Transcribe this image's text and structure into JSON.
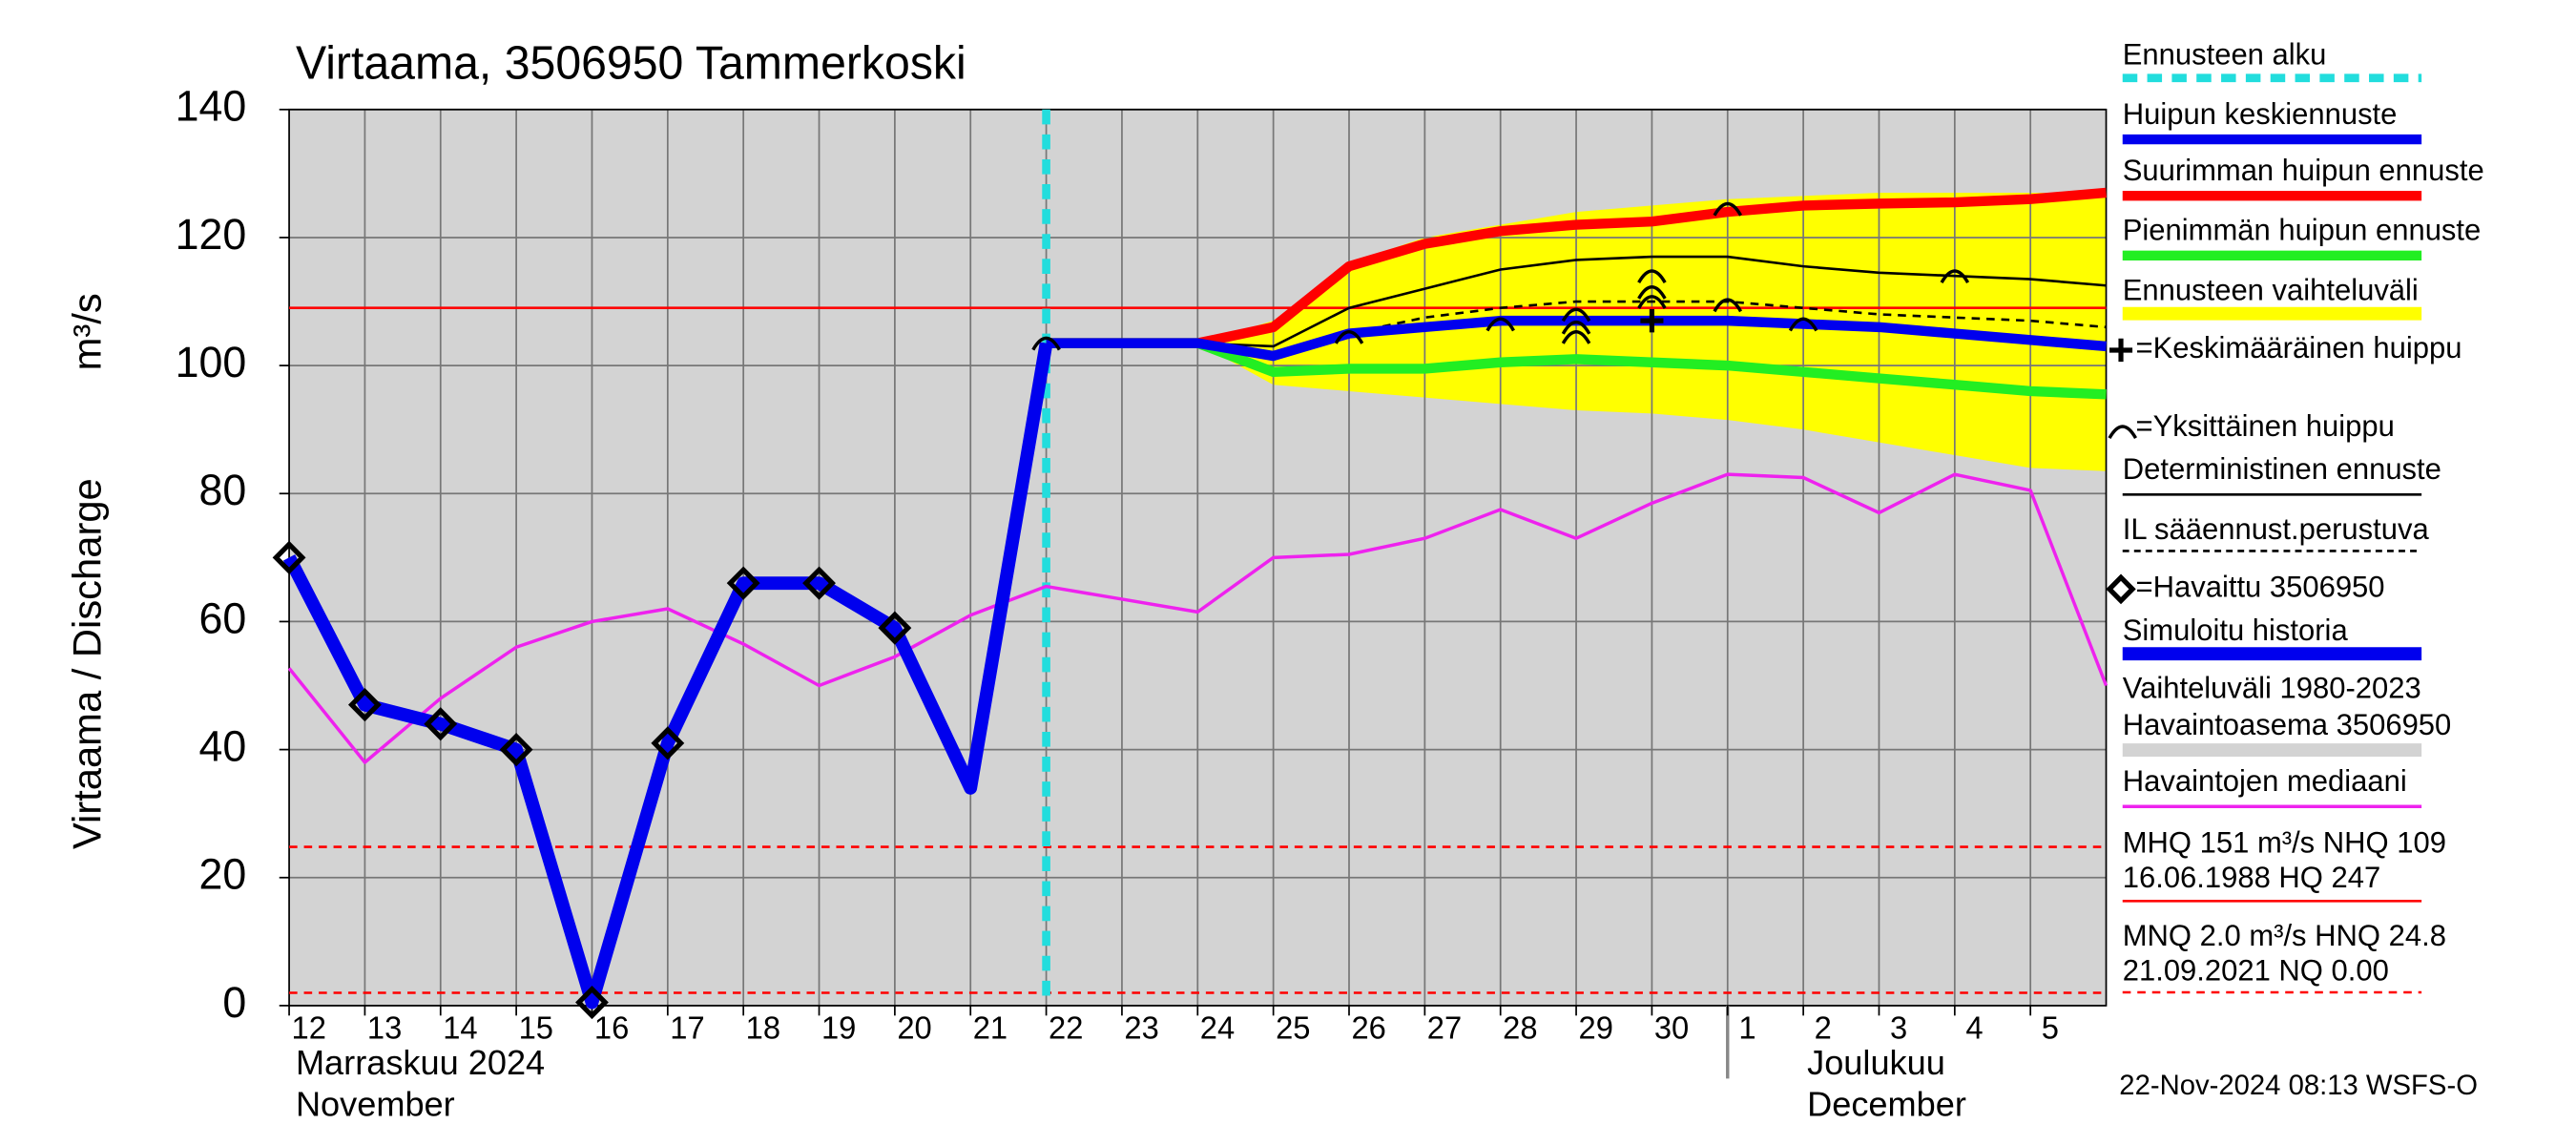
{
  "chart_data": {
    "type": "line",
    "title": "Virtaama, 3506950 Tammerkoski",
    "y_label": "Virtaama / Discharge",
    "y_unit": "m³/s",
    "categories": [
      "12",
      "13",
      "14",
      "15",
      "16",
      "17",
      "18",
      "19",
      "20",
      "21",
      "22",
      "23",
      "24",
      "25",
      "26",
      "27",
      "28",
      "29",
      "30",
      "1",
      "2",
      "3",
      "4",
      "5",
      null
    ],
    "month_labels": [
      "Marraskuu 2024",
      "November",
      "Joulukuu",
      "December"
    ],
    "timestamp": "22-Nov-2024 08:13 WSFS-O",
    "ylim": [
      0,
      140
    ],
    "yticks": [
      0,
      20,
      40,
      60,
      80,
      100,
      120,
      140
    ],
    "grid": true,
    "background_band": {
      "name": [
        "Vaihteluväli 1980-2023",
        " Havaintoasema 3506950"
      ],
      "color": "#d3d3d3"
    },
    "forecast_start": {
      "name": "Ennusteen alku",
      "category": "22",
      "color": "#22dddd"
    },
    "band": {
      "name": "Ennusteen vaihteluväli",
      "color": "#ffff00",
      "upper": [
        null,
        null,
        null,
        null,
        null,
        null,
        null,
        null,
        null,
        null,
        103.5,
        103.5,
        103.5,
        107,
        116,
        120,
        122,
        124,
        125,
        126,
        126.5,
        127,
        127,
        127,
        127
      ],
      "lower": [
        null,
        null,
        null,
        null,
        null,
        null,
        null,
        null,
        null,
        null,
        103.5,
        103.5,
        103.5,
        97,
        96,
        95,
        94,
        93,
        92.5,
        91.5,
        90,
        88,
        86,
        84,
        83.5
      ]
    },
    "series": [
      {
        "name": "Havaintojen mediaani",
        "color": "#ee22ee",
        "width": 2,
        "values": [
          52.7,
          38,
          48,
          56,
          60,
          62,
          56.5,
          50,
          54.5,
          61,
          65.5,
          63.5,
          61.5,
          70,
          70.5,
          73,
          77.5,
          73,
          78.5,
          83,
          82.5,
          77,
          83,
          80.5,
          50
        ]
      },
      {
        "name": "Deterministinen ennuste",
        "color": "#000000",
        "width": 1.5,
        "values": [
          null,
          null,
          null,
          null,
          null,
          null,
          null,
          null,
          null,
          null,
          103.5,
          103.5,
          103.5,
          103,
          109,
          112,
          115,
          116.5,
          117,
          117,
          115.5,
          114.5,
          114,
          113.5,
          112.5
        ]
      },
      {
        "name": "IL sääennust.perustuva",
        "color": "#000000",
        "width": 1.5,
        "dash": true,
        "values": [
          null,
          null,
          null,
          null,
          null,
          null,
          null,
          null,
          null,
          null,
          103.5,
          103.5,
          103.5,
          102,
          105,
          107.5,
          109,
          110,
          110,
          110,
          109,
          108,
          107.5,
          107,
          106
        ]
      },
      {
        "name": "Suurimman huipun ennuste",
        "color": "#ff0000",
        "width": 6,
        "values": [
          null,
          null,
          null,
          null,
          null,
          null,
          null,
          null,
          null,
          null,
          103.5,
          103.5,
          103.5,
          106,
          115.5,
          119,
          121,
          122,
          122.5,
          124,
          125,
          125.3,
          125.5,
          126,
          127
        ]
      },
      {
        "name": "Pienimmän huipun ennuste",
        "color": "#22ee22",
        "width": 6,
        "values": [
          null,
          null,
          null,
          null,
          null,
          null,
          null,
          null,
          null,
          null,
          103.5,
          103.5,
          103.5,
          99,
          99.5,
          99.5,
          100.5,
          101,
          100.5,
          100,
          99,
          98,
          97,
          96,
          95.5
        ]
      },
      {
        "name": "Huipun keskiennuste",
        "color": "#0000ee",
        "width": 6,
        "values": [
          null,
          null,
          null,
          null,
          null,
          null,
          null,
          null,
          null,
          null,
          103.5,
          103.5,
          103.5,
          101.5,
          105,
          106,
          107,
          107,
          107,
          107,
          106.5,
          106,
          105,
          104,
          103
        ]
      },
      {
        "name": "Simuloitu historia",
        "color": "#0000ee",
        "width": 8,
        "values": [
          70,
          47,
          44,
          40,
          0.5,
          41,
          66,
          66,
          59,
          34,
          103.5,
          null,
          null,
          null,
          null,
          null,
          null,
          null,
          null,
          null,
          null,
          null,
          null,
          null,
          null
        ]
      },
      {
        "name": "=Havaittu 3506950",
        "color": "#000000",
        "width": 0,
        "marker": "diamond",
        "values": [
          70,
          47,
          44,
          40,
          0.5,
          41,
          66,
          66,
          59,
          null,
          null,
          null,
          null,
          null,
          null,
          null,
          null,
          null,
          null,
          null,
          null,
          null,
          null,
          null,
          null
        ]
      }
    ],
    "mean_peak": {
      "name": "=Keskimääräinen huippu",
      "category": "30",
      "value": 107
    },
    "single_peaks": {
      "name": "=Yksittäinen huippu",
      "points": [
        {
          "category": "22",
          "value": 103.5
        },
        {
          "category": "26",
          "value": 104.5
        },
        {
          "category": "28",
          "value": 106.5
        },
        {
          "category": "29",
          "value": 108
        },
        {
          "category": "29",
          "value": 106
        },
        {
          "category": "29",
          "value": 104.5
        },
        {
          "category": "30",
          "value": 114
        },
        {
          "category": "30",
          "value": 111.5
        },
        {
          "category": "30",
          "value": 110
        },
        {
          "category": "1",
          "value": 124.5
        },
        {
          "category": "1",
          "value": 109.5
        },
        {
          "category": "2",
          "value": 106.5
        },
        {
          "category": "4",
          "value": 114
        }
      ]
    },
    "reference_lines": [
      {
        "value": 109,
        "color": "#ff0000",
        "dash": false,
        "label": [
          "MHQ  151 m³/s NHQ  109",
          "16.06.1988 HQ  247"
        ]
      },
      {
        "value": 24.8,
        "color": "#ff0000",
        "dash": true
      },
      {
        "value": 2.0,
        "color": "#ff0000",
        "dash": true,
        "label": [
          "MNQ  2.0 m³/s HNQ 24.8",
          "21.09.2021 NQ 0.00"
        ]
      }
    ]
  }
}
